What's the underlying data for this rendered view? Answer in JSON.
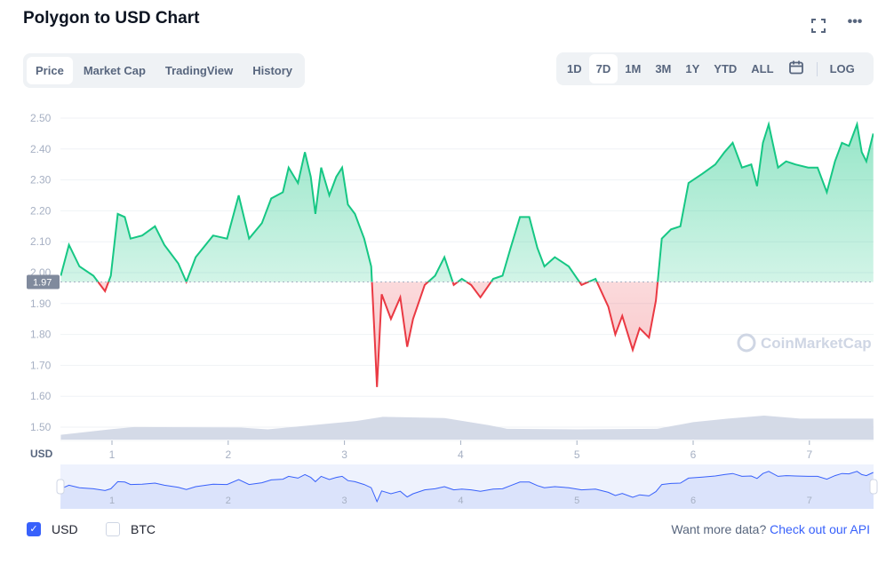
{
  "header": {
    "title": "Polygon to USD Chart",
    "fullscreen_icon": "fullscreen-icon",
    "more_icon": "more-icon"
  },
  "tabs": [
    {
      "label": "Price",
      "active": true
    },
    {
      "label": "Market Cap"
    },
    {
      "label": "TradingView"
    },
    {
      "label": "History"
    }
  ],
  "ranges": [
    {
      "label": "1D"
    },
    {
      "label": "7D",
      "active": true
    },
    {
      "label": "1M"
    },
    {
      "label": "3M"
    },
    {
      "label": "1Y"
    },
    {
      "label": "YTD"
    },
    {
      "label": "ALL"
    }
  ],
  "calendar_icon": "calendar-icon",
  "log_label": "LOG",
  "legend": {
    "usd": "USD",
    "btc": "BTC",
    "usd_checked": true,
    "btc_checked": false
  },
  "api": {
    "prefix": "Want more data?",
    "link": "Check out our API"
  },
  "watermark": "CoinMarketCap",
  "colors": {
    "up": "#16c784",
    "down": "#ea3943",
    "volume": "#cfd6e4",
    "navigator": "#3861fb"
  },
  "chart_data": {
    "type": "line",
    "title": "Polygon to USD Chart",
    "xlabel": "",
    "ylabel": "USD",
    "ylim": [
      1.5,
      2.5
    ],
    "xlim": [
      0.56,
      7.55
    ],
    "y_ticks": [
      "2.50",
      "2.40",
      "2.30",
      "2.20",
      "2.10",
      "2.00",
      "1.90",
      "1.80",
      "1.70",
      "1.60",
      "1.50"
    ],
    "x_ticks": [
      "1",
      "2",
      "3",
      "4",
      "5",
      "6",
      "7"
    ],
    "baseline": 1.97,
    "baseline_label": "1.97",
    "grid": true,
    "x": [
      0.56,
      0.63,
      0.72,
      0.84,
      0.94,
      0.99,
      1.05,
      1.11,
      1.16,
      1.26,
      1.37,
      1.45,
      1.57,
      1.64,
      1.72,
      1.87,
      1.99,
      2.09,
      2.18,
      2.29,
      2.37,
      2.47,
      2.52,
      2.6,
      2.66,
      2.71,
      2.75,
      2.8,
      2.87,
      2.93,
      2.98,
      3.03,
      3.09,
      3.17,
      3.23,
      3.26,
      3.28,
      3.32,
      3.4,
      3.48,
      3.54,
      3.59,
      3.69,
      3.78,
      3.86,
      3.94,
      4.01,
      4.09,
      4.17,
      4.28,
      4.36,
      4.43,
      4.51,
      4.59,
      4.66,
      4.72,
      4.81,
      4.93,
      5.04,
      5.16,
      5.27,
      5.33,
      5.39,
      5.48,
      5.54,
      5.62,
      5.68,
      5.73,
      5.81,
      5.89,
      5.96,
      6.08,
      6.19,
      6.27,
      6.34,
      6.42,
      6.5,
      6.55,
      6.6,
      6.65,
      6.73,
      6.8,
      6.88,
      6.99,
      7.07,
      7.15,
      7.22,
      7.28,
      7.34,
      7.41,
      7.45,
      7.49,
      7.55
    ],
    "price": [
      1.99,
      2.09,
      2.02,
      1.99,
      1.94,
      1.99,
      2.19,
      2.18,
      2.11,
      2.12,
      2.15,
      2.09,
      2.03,
      1.97,
      2.05,
      2.12,
      2.11,
      2.25,
      2.11,
      2.16,
      2.24,
      2.26,
      2.34,
      2.29,
      2.39,
      2.31,
      2.19,
      2.34,
      2.25,
      2.31,
      2.34,
      2.22,
      2.19,
      2.11,
      2.02,
      1.79,
      1.63,
      1.93,
      1.85,
      1.92,
      1.76,
      1.85,
      1.96,
      1.99,
      2.05,
      1.96,
      1.98,
      1.96,
      1.92,
      1.98,
      1.99,
      2.08,
      2.18,
      2.18,
      2.08,
      2.02,
      2.05,
      2.02,
      1.96,
      1.98,
      1.89,
      1.8,
      1.86,
      1.75,
      1.82,
      1.79,
      1.91,
      2.11,
      2.14,
      2.15,
      2.29,
      2.32,
      2.35,
      2.39,
      2.42,
      2.34,
      2.35,
      2.28,
      2.42,
      2.48,
      2.34,
      2.36,
      2.35,
      2.34,
      2.34,
      2.26,
      2.36,
      2.42,
      2.41,
      2.48,
      2.39,
      2.36,
      2.45
    ],
    "volume_x": [
      0.56,
      1.03,
      1.19,
      2.11,
      2.34,
      3.1,
      3.33,
      3.86,
      4.24,
      4.4,
      5.0,
      5.69,
      6.0,
      6.3,
      6.61,
      6.92,
      7.55
    ],
    "volume_level": [
      0.08,
      0.18,
      0.21,
      0.2,
      0.17,
      0.31,
      0.38,
      0.36,
      0.24,
      0.18,
      0.17,
      0.18,
      0.29,
      0.35,
      0.4,
      0.35,
      0.35
    ]
  }
}
